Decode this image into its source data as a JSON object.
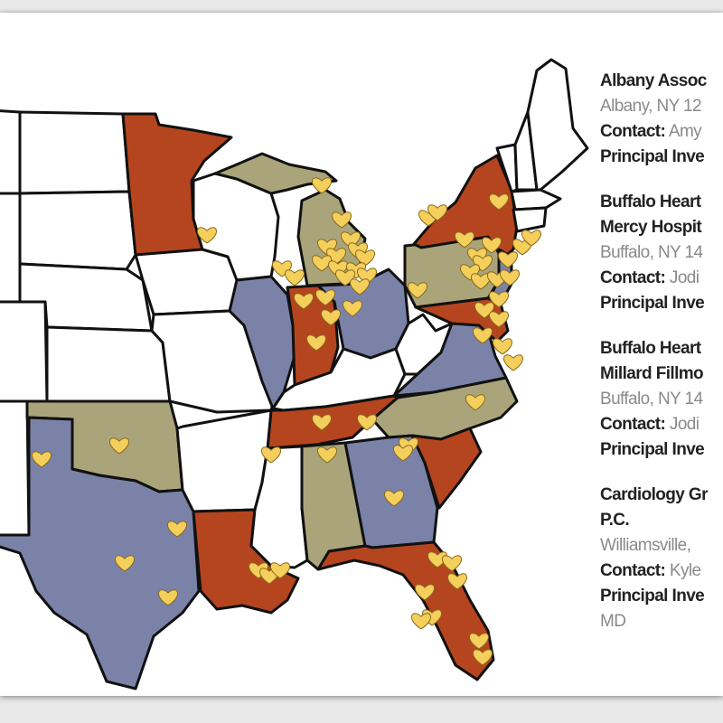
{
  "map": {
    "colors": {
      "red": "#b5451f",
      "blue": "#7b82a8",
      "tan": "#aaa47b",
      "white": "#ffffff",
      "marker": "#f4cf5c"
    },
    "marker_icon": "heart-icon"
  },
  "listings": [
    {
      "name_lines": [
        "Albany Assoc"
      ],
      "address": "Albany, NY 12",
      "contact_label": "Contact:",
      "contact_value": "Amy",
      "pi_label": "Principal Inve"
    },
    {
      "name_lines": [
        "Buffalo Heart",
        "Mercy Hospit"
      ],
      "address": "Buffalo, NY 14",
      "contact_label": "Contact:",
      "contact_value": "Jodi",
      "pi_label": "Principal Inve"
    },
    {
      "name_lines": [
        "Buffalo Heart",
        "Millard Fillmo"
      ],
      "address": "Buffalo, NY 14",
      "contact_label": "Contact:",
      "contact_value": "Jodi",
      "pi_label": "Principal Inve"
    },
    {
      "name_lines": [
        "Cardiology Gr",
        "P.C."
      ],
      "address": "Williamsville,",
      "contact_label": "Contact:",
      "contact_value": "Kyle",
      "pi_label": "Principal Inve",
      "pi_suffix": "MD"
    }
  ]
}
